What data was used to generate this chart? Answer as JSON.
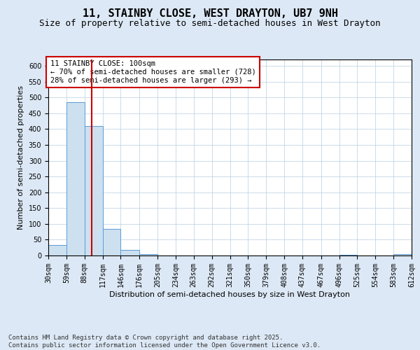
{
  "title": "11, STAINBY CLOSE, WEST DRAYTON, UB7 9NH",
  "subtitle": "Size of property relative to semi-detached houses in West Drayton",
  "xlabel": "Distribution of semi-detached houses by size in West Drayton",
  "ylabel": "Number of semi-detached properties",
  "footer": "Contains HM Land Registry data © Crown copyright and database right 2025.\nContains public sector information licensed under the Open Government Licence v3.0.",
  "bin_edges": [
    30,
    59,
    88,
    117,
    146,
    176,
    205,
    234,
    263,
    292,
    321,
    350,
    379,
    408,
    437,
    467,
    496,
    525,
    554,
    583,
    612
  ],
  "bin_labels": [
    "30sqm",
    "59sqm",
    "88sqm",
    "117sqm",
    "146sqm",
    "176sqm",
    "205sqm",
    "234sqm",
    "263sqm",
    "292sqm",
    "321sqm",
    "350sqm",
    "379sqm",
    "408sqm",
    "437sqm",
    "467sqm",
    "496sqm",
    "525sqm",
    "554sqm",
    "583sqm",
    "612sqm"
  ],
  "counts": [
    33,
    484,
    410,
    85,
    18,
    5,
    0,
    0,
    0,
    0,
    0,
    0,
    0,
    0,
    0,
    0,
    3,
    0,
    0,
    4
  ],
  "property_line_x": 100,
  "bar_color": "#cce0f0",
  "bar_edge_color": "#5b9bd5",
  "line_color": "#cc0000",
  "annotation_text": "11 STAINBY CLOSE: 100sqm\n← 70% of semi-detached houses are smaller (728)\n28% of semi-detached houses are larger (293) →",
  "annotation_box_color": "#cc0000",
  "ylim": [
    0,
    620
  ],
  "yticks": [
    0,
    50,
    100,
    150,
    200,
    250,
    300,
    350,
    400,
    450,
    500,
    550,
    600
  ],
  "bg_color": "#dce8f5",
  "plot_bg": "#ffffff",
  "title_fontsize": 11,
  "subtitle_fontsize": 9,
  "label_fontsize": 8,
  "tick_fontsize": 7,
  "footer_fontsize": 6.5,
  "annotation_fontsize": 7.5
}
